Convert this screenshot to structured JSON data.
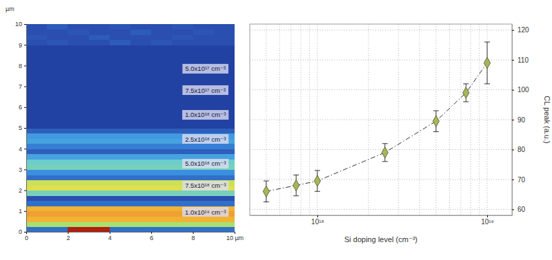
{
  "chart_data": [
    {
      "type": "heatmap",
      "xlim": [
        0,
        10
      ],
      "ylim": [
        0,
        10
      ],
      "xticks": [
        0,
        2,
        4,
        6,
        8,
        {
          "value": 10,
          "label": "10 µm"
        }
      ],
      "yticks": [
        0,
        1,
        2,
        3,
        4,
        5,
        6,
        7,
        8,
        9,
        10
      ],
      "y_label": "µm",
      "zlim": [
        0,
        1
      ],
      "cells": [
        [
          0.3,
          0.3,
          1.0,
          1.0,
          0.3,
          0.3,
          0.3,
          0.3,
          0.3,
          0.3
        ],
        [
          0.7,
          0.7,
          0.7,
          0.7,
          0.7,
          0.7,
          0.7,
          0.7,
          0.7,
          0.7
        ],
        [
          0.85,
          0.85,
          0.85,
          0.85,
          0.85,
          0.85,
          0.85,
          0.85,
          0.85,
          0.85
        ],
        [
          0.88,
          0.88,
          0.88,
          0.88,
          0.88,
          0.88,
          0.88,
          0.88,
          0.88,
          0.88
        ],
        [
          0.85,
          0.85,
          0.85,
          0.85,
          0.85,
          0.85,
          0.85,
          0.85,
          0.85,
          0.85
        ],
        [
          0.3,
          0.3,
          0.3,
          0.3,
          0.3,
          0.3,
          0.3,
          0.3,
          0.3,
          0.3
        ],
        [
          0.2,
          0.2,
          0.2,
          0.2,
          0.2,
          0.2,
          0.2,
          0.2,
          0.2,
          0.2
        ],
        [
          0.6,
          0.6,
          0.6,
          0.6,
          0.6,
          0.6,
          0.6,
          0.6,
          0.6,
          0.6
        ],
        [
          0.76,
          0.76,
          0.76,
          0.76,
          0.76,
          0.76,
          0.76,
          0.76,
          0.76,
          0.76
        ],
        [
          0.74,
          0.74,
          0.74,
          0.74,
          0.74,
          0.74,
          0.74,
          0.74,
          0.74,
          0.74
        ],
        [
          0.3,
          0.3,
          0.3,
          0.3,
          0.3,
          0.3,
          0.3,
          0.3,
          0.3,
          0.3
        ],
        [
          0.4,
          0.4,
          0.4,
          0.4,
          0.4,
          0.4,
          0.4,
          0.4,
          0.4,
          0.4
        ],
        [
          0.6,
          0.6,
          0.6,
          0.6,
          0.6,
          0.6,
          0.6,
          0.6,
          0.6,
          0.6
        ],
        [
          0.58,
          0.58,
          0.58,
          0.58,
          0.58,
          0.58,
          0.58,
          0.58,
          0.58,
          0.58
        ],
        [
          0.45,
          0.45,
          0.45,
          0.45,
          0.45,
          0.45,
          0.45,
          0.45,
          0.45,
          0.45
        ],
        [
          0.25,
          0.25,
          0.25,
          0.25,
          0.25,
          0.25,
          0.25,
          0.25,
          0.25,
          0.25
        ],
        [
          0.35,
          0.35,
          0.35,
          0.35,
          0.35,
          0.35,
          0.35,
          0.35,
          0.35,
          0.35
        ],
        [
          0.45,
          0.45,
          0.45,
          0.45,
          0.45,
          0.45,
          0.45,
          0.45,
          0.45,
          0.45
        ],
        [
          0.43,
          0.43,
          0.43,
          0.43,
          0.43,
          0.43,
          0.43,
          0.43,
          0.43,
          0.43
        ],
        [
          0.25,
          0.25,
          0.25,
          0.25,
          0.25,
          0.25,
          0.25,
          0.25,
          0.25,
          0.25
        ],
        [
          0.15,
          0.15,
          0.15,
          0.15,
          0.15,
          0.15,
          0.15,
          0.15,
          0.15,
          0.15
        ],
        [
          0.15,
          0.15,
          0.15,
          0.15,
          0.15,
          0.15,
          0.15,
          0.15,
          0.15,
          0.15
        ],
        [
          0.15,
          0.15,
          0.15,
          0.15,
          0.15,
          0.15,
          0.15,
          0.15,
          0.15,
          0.15
        ],
        [
          0.15,
          0.15,
          0.15,
          0.15,
          0.15,
          0.15,
          0.15,
          0.15,
          0.15,
          0.15
        ],
        [
          0.15,
          0.15,
          0.15,
          0.15,
          0.15,
          0.15,
          0.15,
          0.15,
          0.15,
          0.15
        ],
        [
          0.15,
          0.15,
          0.15,
          0.15,
          0.15,
          0.15,
          0.15,
          0.15,
          0.15,
          0.15
        ],
        [
          0.15,
          0.15,
          0.15,
          0.15,
          0.15,
          0.15,
          0.15,
          0.15,
          0.15,
          0.15
        ],
        [
          0.15,
          0.15,
          0.15,
          0.15,
          0.15,
          0.15,
          0.15,
          0.15,
          0.15,
          0.15
        ],
        [
          0.15,
          0.15,
          0.15,
          0.15,
          0.15,
          0.15,
          0.15,
          0.15,
          0.15,
          0.15
        ],
        [
          0.15,
          0.15,
          0.15,
          0.15,
          0.15,
          0.15,
          0.15,
          0.15,
          0.15,
          0.15
        ],
        [
          0.15,
          0.15,
          0.15,
          0.15,
          0.15,
          0.15,
          0.15,
          0.15,
          0.15,
          0.15
        ],
        [
          0.15,
          0.15,
          0.15,
          0.15,
          0.15,
          0.15,
          0.15,
          0.15,
          0.15,
          0.15
        ],
        [
          0.15,
          0.15,
          0.15,
          0.15,
          0.15,
          0.15,
          0.15,
          0.15,
          0.15,
          0.15
        ],
        [
          0.15,
          0.15,
          0.15,
          0.15,
          0.15,
          0.15,
          0.15,
          0.15,
          0.15,
          0.15
        ],
        [
          0.15,
          0.15,
          0.15,
          0.15,
          0.15,
          0.15,
          0.15,
          0.15,
          0.15,
          0.15
        ],
        [
          0.15,
          0.15,
          0.15,
          0.15,
          0.15,
          0.15,
          0.15,
          0.15,
          0.15,
          0.15
        ],
        [
          0.2,
          0.22,
          0.2,
          0.2,
          0.24,
          0.2,
          0.22,
          0.2,
          0.2,
          0.2
        ],
        [
          0.22,
          0.2,
          0.2,
          0.24,
          0.2,
          0.2,
          0.2,
          0.22,
          0.2,
          0.2
        ],
        [
          0.2,
          0.2,
          0.22,
          0.2,
          0.2,
          0.24,
          0.2,
          0.2,
          0.22,
          0.2
        ],
        [
          0.2,
          0.24,
          0.2,
          0.2,
          0.22,
          0.2,
          0.2,
          0.22,
          0.2,
          0.2
        ]
      ],
      "annotations": [
        {
          "text": "5.0x10¹⁷ cm⁻³",
          "x": 8.6,
          "y": 7.85
        },
        {
          "text": "7.5x10¹⁷ cm⁻³",
          "x": 8.6,
          "y": 6.82
        },
        {
          "text": "1.0x10¹⁸ cm⁻³",
          "x": 8.6,
          "y": 5.63
        },
        {
          "text": "2.5x10¹⁸ cm⁻³",
          "x": 8.6,
          "y": 4.47
        },
        {
          "text": "5.0x10¹⁸ cm⁻³",
          "x": 8.6,
          "y": 3.28
        },
        {
          "text": "7.5x10¹⁸ cm⁻³",
          "x": 8.6,
          "y": 2.22
        },
        {
          "text": "1.0x10¹⁹ cm⁻³",
          "x": 8.6,
          "y": 0.96
        }
      ]
    },
    {
      "type": "line",
      "x": [
        5e+17,
        7.5e+17,
        1e+18,
        2.5e+18,
        5e+18,
        7.5e+18,
        1e+19
      ],
      "values": [
        66,
        68,
        69.5,
        79,
        89.5,
        99,
        109
      ],
      "errors": [
        3.5,
        3.5,
        3.5,
        3,
        3.5,
        3,
        7
      ],
      "color": "#a9b55a",
      "marker": "diamond",
      "line_style": "dashdot",
      "log": "x",
      "grid": true,
      "xlim": [
        4e+17,
        1.4e+19
      ],
      "ylim": [
        58,
        122
      ],
      "xticks": [
        {
          "value": 1e+18,
          "label": "10¹⁸"
        },
        {
          "value": 1e+19,
          "label": "10¹⁹"
        }
      ],
      "xticks_minor": [
        5e+17,
        6e+17,
        7e+17,
        8e+17,
        9e+17,
        2e+18,
        3e+18,
        4e+18,
        5e+18,
        6e+18,
        7e+18,
        8e+18,
        9e+18
      ],
      "yticks": [
        60,
        70,
        80,
        90,
        100,
        110,
        120
      ],
      "x_label": "Si doping level (cm⁻³)",
      "y_label": "CL peak (a.u.)"
    }
  ]
}
